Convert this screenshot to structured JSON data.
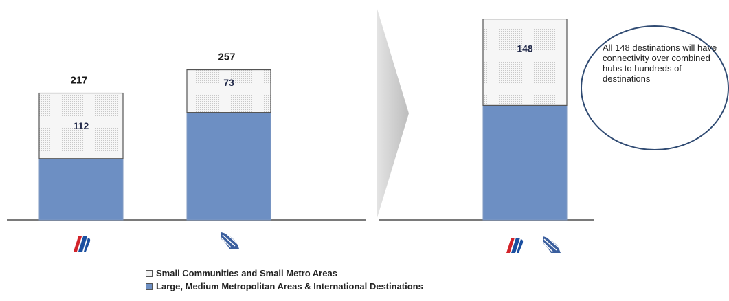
{
  "chart_data": {
    "type": "bar",
    "stacked": true,
    "panels": [
      {
        "categories": [
          "United logo",
          "Continental logo"
        ],
        "totals": [
          217,
          257
        ],
        "series": [
          {
            "name": "Large, Medium Metropolitan Areas & International Destinations",
            "values": [
              105,
              184
            ],
            "color": "#6d8fc3"
          },
          {
            "name": "Small Communities and Small Metro Areas",
            "values": [
              112,
              73
            ],
            "color": "#eeeeee",
            "labels": [
              "112",
              "73"
            ]
          }
        ]
      },
      {
        "categories": [
          "United + Continental logos"
        ],
        "series": [
          {
            "name": "Large, Medium Metropolitan Areas & International Destinations",
            "values": [
              196
            ],
            "color": "#6d8fc3"
          },
          {
            "name": "Small Communities and Small Metro Areas",
            "values": [
              148
            ],
            "color": "#eeeeee",
            "labels": [
              "148"
            ]
          }
        ]
      }
    ],
    "legend": [
      "Small Communities and Small Metro Areas",
      "Large, Medium Metropolitan Areas & International Destinations"
    ],
    "legend_position": "bottom-center",
    "grid": false
  },
  "callout": {
    "text": "All 148 destinations will have connectivity over combined hubs to hundreds of destinations"
  },
  "legend": {
    "small_label": "Small Communities and Small Metro Areas",
    "large_label": "Large, Medium Metropolitan Areas & International Destinations"
  },
  "colors": {
    "large": "#6d8fc3",
    "small": "#eeeeee",
    "united_red": "#d2232a",
    "united_blue": "#1a4fa0",
    "continental_blue": "#3b5f9e"
  },
  "icons": [
    "united-tulip-logo-icon",
    "continental-globe-logo-icon"
  ]
}
